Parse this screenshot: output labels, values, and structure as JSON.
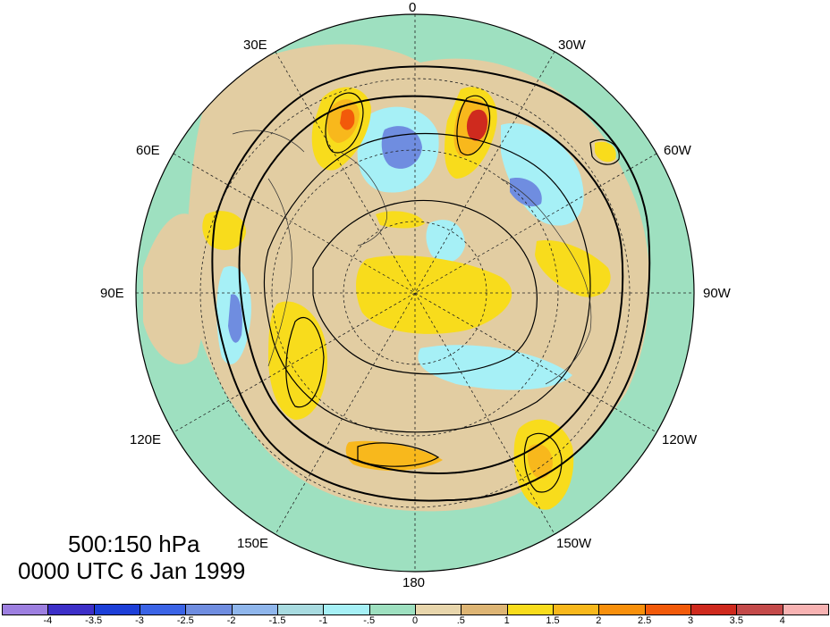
{
  "title": {
    "line1": "500:150 hPa",
    "line2": "0000 UTC 6 Jan 1999"
  },
  "map": {
    "projection": "north polar stereographic",
    "longitude_labels": [
      "0",
      "30W",
      "60W",
      "90W",
      "120W",
      "150W",
      "180",
      "150E",
      "120E",
      "90E",
      "60E",
      "30E"
    ],
    "colors": {
      "ocean_base": "#9ee0c0",
      "land_tan": "#e2cda2"
    }
  },
  "colorbar": {
    "colors": [
      "#9d7fe0",
      "#3d2fc8",
      "#1d3fd8",
      "#3b64e6",
      "#6f8de0",
      "#8fb6ec",
      "#a8dbe0",
      "#a6f0f6",
      "#9ee0c0",
      "#e8d6ac",
      "#deb574",
      "#f8dc1c",
      "#f8b81c",
      "#f8900c",
      "#f25a0a",
      "#cf2a1e",
      "#c44a4a",
      "#f8b3b3"
    ],
    "tick_labels": [
      "-4",
      "-3.5",
      "-3",
      "-2.5",
      "-2",
      "-1.5",
      "-1",
      "-.5",
      "0",
      ".5",
      "1",
      "1.5",
      "2",
      "2.5",
      "3",
      "3.5",
      "4"
    ]
  }
}
